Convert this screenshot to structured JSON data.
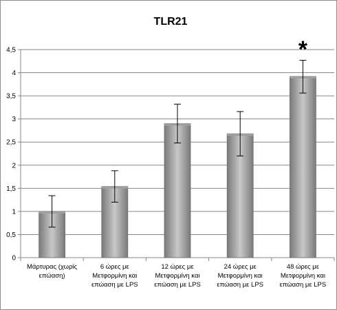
{
  "chart_data": {
    "type": "bar",
    "title": "TLR21",
    "categories": [
      [
        "Μάρτυρας (χωρίς",
        "επώαση)"
      ],
      [
        "6 ώρες με",
        "Μετφορμίνη και",
        "επώαση με LPS"
      ],
      [
        "12 ώρες με",
        "Μετφορμίνη και",
        "επώαση με LPS"
      ],
      [
        "24 ώρες με",
        "Μετφορμίνη και",
        "επώαση με LPS"
      ],
      [
        "48 ώρες με",
        "Μετφορμίνη και",
        "επώαση με LPS"
      ]
    ],
    "values": [
      1.0,
      1.54,
      2.9,
      2.68,
      3.92
    ],
    "error_low": [
      0.66,
      1.2,
      2.48,
      2.2,
      3.56
    ],
    "error_high": [
      1.34,
      1.88,
      3.32,
      3.16,
      4.27
    ],
    "ylim": [
      0,
      4.5
    ],
    "yticks": [
      "0",
      "0,5",
      "1",
      "1,5",
      "2",
      "2,5",
      "3",
      "3,5",
      "4",
      "4,5"
    ],
    "grid": true,
    "annotation": {
      "text": "*",
      "category_index": 4
    },
    "colors": {
      "bar_dark": "#7a7a7a",
      "bar_light": "#c8c8c8",
      "grid": "#868686"
    }
  }
}
